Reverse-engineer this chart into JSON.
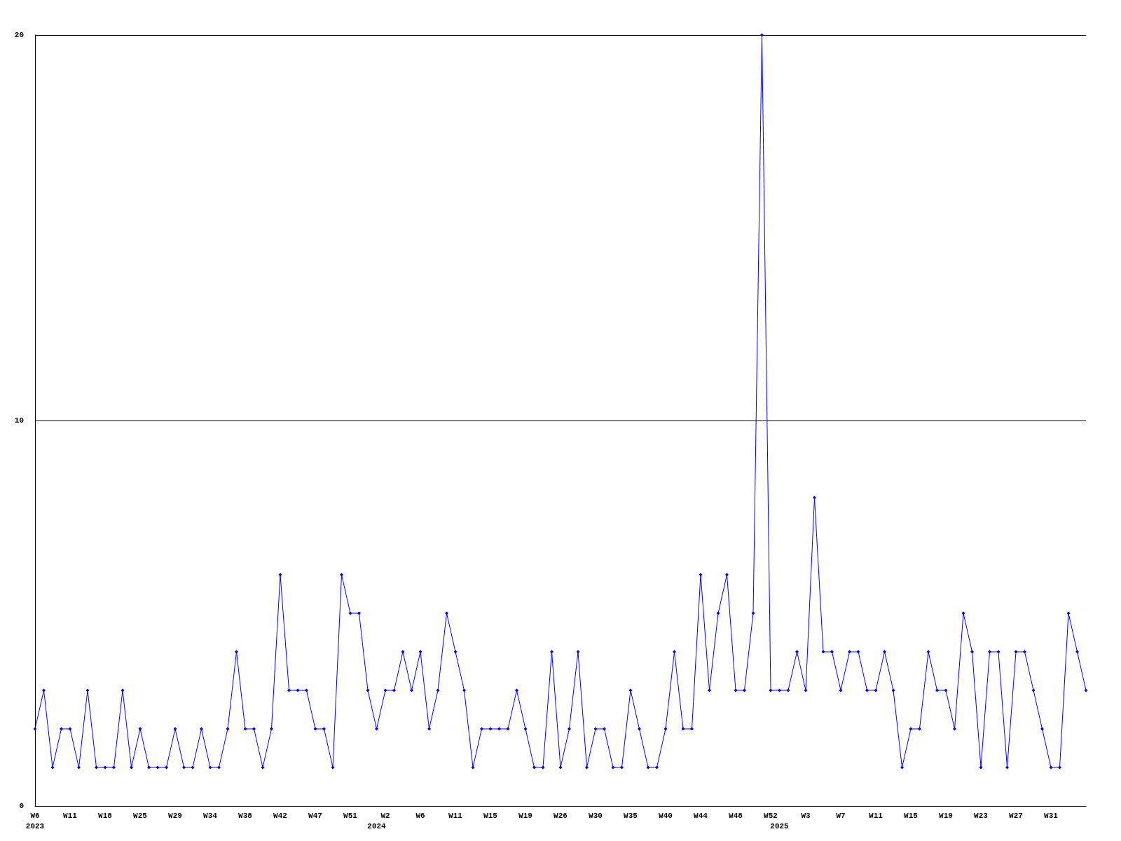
{
  "chart_data": {
    "type": "line",
    "categories": [
      "W6\n2023",
      null,
      null,
      null,
      "W11",
      null,
      null,
      null,
      "W18",
      null,
      null,
      null,
      "W25",
      null,
      null,
      null,
      "W29",
      null,
      null,
      null,
      "W34",
      null,
      null,
      null,
      "W38",
      null,
      null,
      null,
      "W42",
      null,
      null,
      null,
      "W47",
      null,
      null,
      null,
      "W51",
      null,
      null,
      "\n2024",
      "W2",
      null,
      null,
      null,
      "W6",
      null,
      null,
      null,
      "W11",
      null,
      null,
      null,
      "W15",
      null,
      null,
      null,
      "W19",
      null,
      null,
      null,
      "W26",
      null,
      null,
      null,
      "W30",
      null,
      null,
      null,
      "W35",
      null,
      null,
      null,
      "W40",
      null,
      null,
      null,
      "W44",
      null,
      null,
      null,
      "W48",
      null,
      null,
      null,
      "W52",
      "\n2025",
      null,
      null,
      "W3",
      null,
      null,
      null,
      "W7",
      null,
      null,
      null,
      "W11",
      null,
      null,
      null,
      "W15",
      null,
      null,
      null,
      "W19",
      null,
      null,
      null,
      "W23",
      null,
      null,
      null,
      "W27",
      null,
      null,
      null,
      "W31",
      null,
      null,
      null,
      null
    ],
    "series": [
      {
        "color": "#0000ff",
        "values": [
          2,
          3,
          1,
          2,
          2,
          1,
          3,
          1,
          1,
          1,
          3,
          1,
          2,
          1,
          1,
          1,
          2,
          1,
          1,
          2,
          1,
          1,
          2,
          4,
          2,
          2,
          1,
          2,
          6,
          3,
          3,
          3,
          2,
          2,
          1,
          6,
          5,
          5,
          3,
          2,
          3,
          3,
          4,
          3,
          4,
          2,
          3,
          5,
          4,
          3,
          1,
          2,
          2,
          2,
          2,
          3,
          2,
          1,
          1,
          4,
          1,
          2,
          4,
          1,
          2,
          2,
          1,
          1,
          3,
          2,
          1,
          1,
          2,
          4,
          2,
          2,
          6,
          3,
          5,
          6,
          3,
          3,
          5,
          20,
          3,
          3,
          3,
          4,
          3,
          8,
          4,
          4,
          3,
          4,
          4,
          3,
          3,
          4,
          3,
          1,
          2,
          2,
          4,
          3,
          3,
          2,
          5,
          4,
          1,
          4,
          4,
          1,
          4,
          4,
          3,
          2,
          1,
          1,
          5,
          4,
          3
        ]
      }
    ],
    "ylim": [
      0,
      20
    ],
    "yticks": [
      0,
      10,
      20
    ],
    "grid": "y",
    "marker": "diamond",
    "line_style": "solid"
  }
}
